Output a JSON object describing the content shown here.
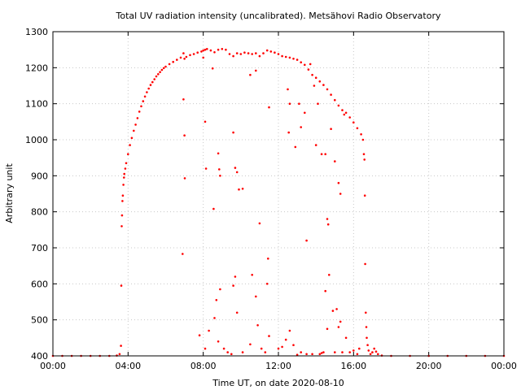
{
  "chart_data": {
    "type": "scatter",
    "title": "Total UV radiation intensity (uncalibrated). Metsähovi Radio Observatory",
    "xlabel": "Time UT, on date 2020-08-10",
    "ylabel": "Arbitrary unit",
    "xlim": [
      0,
      24
    ],
    "ylim": [
      400,
      1300
    ],
    "x_unit": "hours UT",
    "xticks": [
      0,
      4,
      8,
      12,
      16,
      20,
      24
    ],
    "xtick_labels": [
      "00:00",
      "04:00",
      "08:00",
      "12:00",
      "16:00",
      "20:00",
      "00:00"
    ],
    "yticks": [
      400,
      500,
      600,
      700,
      800,
      900,
      1000,
      1100,
      1200,
      1300
    ],
    "ytick_labels": [
      "400",
      "500",
      "600",
      "700",
      "800",
      "900",
      "1000",
      "1100",
      "1200",
      "1300"
    ],
    "grid": true,
    "marker_color": "#ff0000",
    "points": [
      [
        0.0,
        400
      ],
      [
        0.5,
        400
      ],
      [
        1.0,
        400
      ],
      [
        1.5,
        400
      ],
      [
        2.0,
        400
      ],
      [
        2.5,
        400
      ],
      [
        3.0,
        400
      ],
      [
        3.4,
        401
      ],
      [
        3.55,
        405
      ],
      [
        3.62,
        428
      ],
      [
        3.64,
        595
      ],
      [
        3.66,
        760
      ],
      [
        3.68,
        790
      ],
      [
        3.7,
        830
      ],
      [
        3.72,
        845
      ],
      [
        3.75,
        875
      ],
      [
        3.78,
        895
      ],
      [
        3.8,
        905
      ],
      [
        3.85,
        920
      ],
      [
        3.9,
        935
      ],
      [
        4.0,
        960
      ],
      [
        4.1,
        985
      ],
      [
        4.2,
        1005
      ],
      [
        4.3,
        1025
      ],
      [
        4.4,
        1042
      ],
      [
        4.5,
        1060
      ],
      [
        4.6,
        1078
      ],
      [
        4.7,
        1093
      ],
      [
        4.8,
        1107
      ],
      [
        4.9,
        1120
      ],
      [
        5.0,
        1132
      ],
      [
        5.1,
        1142
      ],
      [
        5.2,
        1152
      ],
      [
        5.3,
        1160
      ],
      [
        5.4,
        1168
      ],
      [
        5.5,
        1176
      ],
      [
        5.6,
        1182
      ],
      [
        5.7,
        1188
      ],
      [
        5.8,
        1194
      ],
      [
        5.9,
        1199
      ],
      [
        6.0,
        1203
      ],
      [
        6.2,
        1210
      ],
      [
        6.4,
        1216
      ],
      [
        6.6,
        1222
      ],
      [
        6.8,
        1228
      ],
      [
        6.95,
        1240
      ],
      [
        7.0,
        1225
      ],
      [
        7.1,
        1230
      ],
      [
        7.3,
        1235
      ],
      [
        7.5,
        1238
      ],
      [
        7.7,
        1242
      ],
      [
        7.9,
        1245
      ],
      [
        8.0,
        1248
      ],
      [
        8.1,
        1250
      ],
      [
        8.2,
        1252
      ],
      [
        8.4,
        1248
      ],
      [
        8.6,
        1243
      ],
      [
        8.8,
        1250
      ],
      [
        9.0,
        1252
      ],
      [
        9.2,
        1250
      ],
      [
        9.4,
        1238
      ],
      [
        9.6,
        1232
      ],
      [
        9.8,
        1240
      ],
      [
        10.0,
        1238
      ],
      [
        10.2,
        1242
      ],
      [
        10.4,
        1240
      ],
      [
        10.6,
        1238
      ],
      [
        10.8,
        1240
      ],
      [
        11.0,
        1232
      ],
      [
        11.2,
        1240
      ],
      [
        11.4,
        1248
      ],
      [
        11.6,
        1245
      ],
      [
        11.8,
        1242
      ],
      [
        12.0,
        1238
      ],
      [
        12.2,
        1232
      ],
      [
        12.4,
        1230
      ],
      [
        12.6,
        1228
      ],
      [
        12.8,
        1225
      ],
      [
        13.0,
        1222
      ],
      [
        13.2,
        1215
      ],
      [
        13.4,
        1208
      ],
      [
        13.6,
        1195
      ],
      [
        13.8,
        1180
      ],
      [
        14.0,
        1172
      ],
      [
        14.2,
        1162
      ],
      [
        14.4,
        1152
      ],
      [
        14.6,
        1140
      ],
      [
        14.8,
        1125
      ],
      [
        15.0,
        1110
      ],
      [
        15.2,
        1095
      ],
      [
        15.4,
        1082
      ],
      [
        15.6,
        1075
      ],
      [
        15.8,
        1062
      ],
      [
        16.0,
        1048
      ],
      [
        16.2,
        1032
      ],
      [
        16.4,
        1015
      ],
      [
        16.5,
        1000
      ],
      [
        16.55,
        960
      ],
      [
        16.58,
        945
      ],
      [
        16.6,
        845
      ],
      [
        16.62,
        655
      ],
      [
        16.65,
        520
      ],
      [
        16.68,
        480
      ],
      [
        16.7,
        450
      ],
      [
        16.75,
        430
      ],
      [
        16.8,
        415
      ],
      [
        16.9,
        405
      ],
      [
        17.0,
        410
      ],
      [
        17.1,
        420
      ],
      [
        17.2,
        412
      ],
      [
        17.3,
        405
      ],
      [
        17.5,
        401
      ],
      [
        18.0,
        400
      ],
      [
        19.0,
        400
      ],
      [
        20.0,
        400
      ],
      [
        21.0,
        400
      ],
      [
        22.0,
        400
      ],
      [
        23.0,
        400
      ],
      [
        24.0,
        400
      ],
      [
        6.95,
        1112
      ],
      [
        7.0,
        1012
      ],
      [
        7.02,
        893
      ],
      [
        6.9,
        683
      ],
      [
        8.0,
        1228
      ],
      [
        8.1,
        1050
      ],
      [
        8.15,
        920
      ],
      [
        8.5,
        1198
      ],
      [
        8.55,
        808
      ],
      [
        8.8,
        962
      ],
      [
        8.85,
        918
      ],
      [
        8.9,
        900
      ],
      [
        9.6,
        1020
      ],
      [
        9.7,
        922
      ],
      [
        9.8,
        910
      ],
      [
        9.9,
        862
      ],
      [
        10.1,
        864
      ],
      [
        10.5,
        1180
      ],
      [
        10.8,
        1192
      ],
      [
        11.0,
        768
      ],
      [
        11.5,
        1090
      ],
      [
        11.45,
        670
      ],
      [
        11.4,
        600
      ],
      [
        12.5,
        1140
      ],
      [
        12.55,
        1020
      ],
      [
        12.6,
        1100
      ],
      [
        12.9,
        980
      ],
      [
        13.1,
        1100
      ],
      [
        13.2,
        1035
      ],
      [
        13.4,
        1075
      ],
      [
        13.5,
        720
      ],
      [
        13.7,
        1210
      ],
      [
        13.9,
        1150
      ],
      [
        14.0,
        985
      ],
      [
        14.1,
        1100
      ],
      [
        14.3,
        960
      ],
      [
        14.5,
        960
      ],
      [
        14.6,
        780
      ],
      [
        14.65,
        765
      ],
      [
        14.8,
        1030
      ],
      [
        15.0,
        940
      ],
      [
        15.2,
        880
      ],
      [
        15.3,
        850
      ],
      [
        15.5,
        1070
      ],
      [
        7.8,
        457
      ],
      [
        8.1,
        420
      ],
      [
        8.3,
        470
      ],
      [
        8.6,
        505
      ],
      [
        8.7,
        555
      ],
      [
        8.8,
        440
      ],
      [
        8.9,
        585
      ],
      [
        9.1,
        420
      ],
      [
        9.3,
        410
      ],
      [
        9.6,
        595
      ],
      [
        9.7,
        620
      ],
      [
        9.8,
        520
      ],
      [
        10.1,
        410
      ],
      [
        10.6,
        625
      ],
      [
        10.8,
        565
      ],
      [
        10.9,
        485
      ],
      [
        11.1,
        420
      ],
      [
        11.3,
        410
      ],
      [
        11.5,
        455
      ],
      [
        12.0,
        420
      ],
      [
        12.4,
        445
      ],
      [
        12.6,
        470
      ],
      [
        12.8,
        430
      ],
      [
        13.2,
        410
      ],
      [
        13.5,
        405
      ],
      [
        13.8,
        405
      ],
      [
        14.2,
        405
      ],
      [
        14.4,
        410
      ],
      [
        14.5,
        580
      ],
      [
        14.6,
        475
      ],
      [
        14.7,
        625
      ],
      [
        14.9,
        525
      ],
      [
        15.0,
        410
      ],
      [
        15.1,
        530
      ],
      [
        15.2,
        480
      ],
      [
        15.3,
        495
      ],
      [
        15.4,
        410
      ],
      [
        15.6,
        450
      ],
      [
        15.8,
        410
      ],
      [
        16.0,
        415
      ],
      [
        16.2,
        405
      ],
      [
        16.3,
        420
      ],
      [
        14.3,
        408
      ],
      [
        13.0,
        403
      ],
      [
        12.2,
        425
      ],
      [
        10.5,
        432
      ],
      [
        9.5,
        405
      ]
    ]
  }
}
